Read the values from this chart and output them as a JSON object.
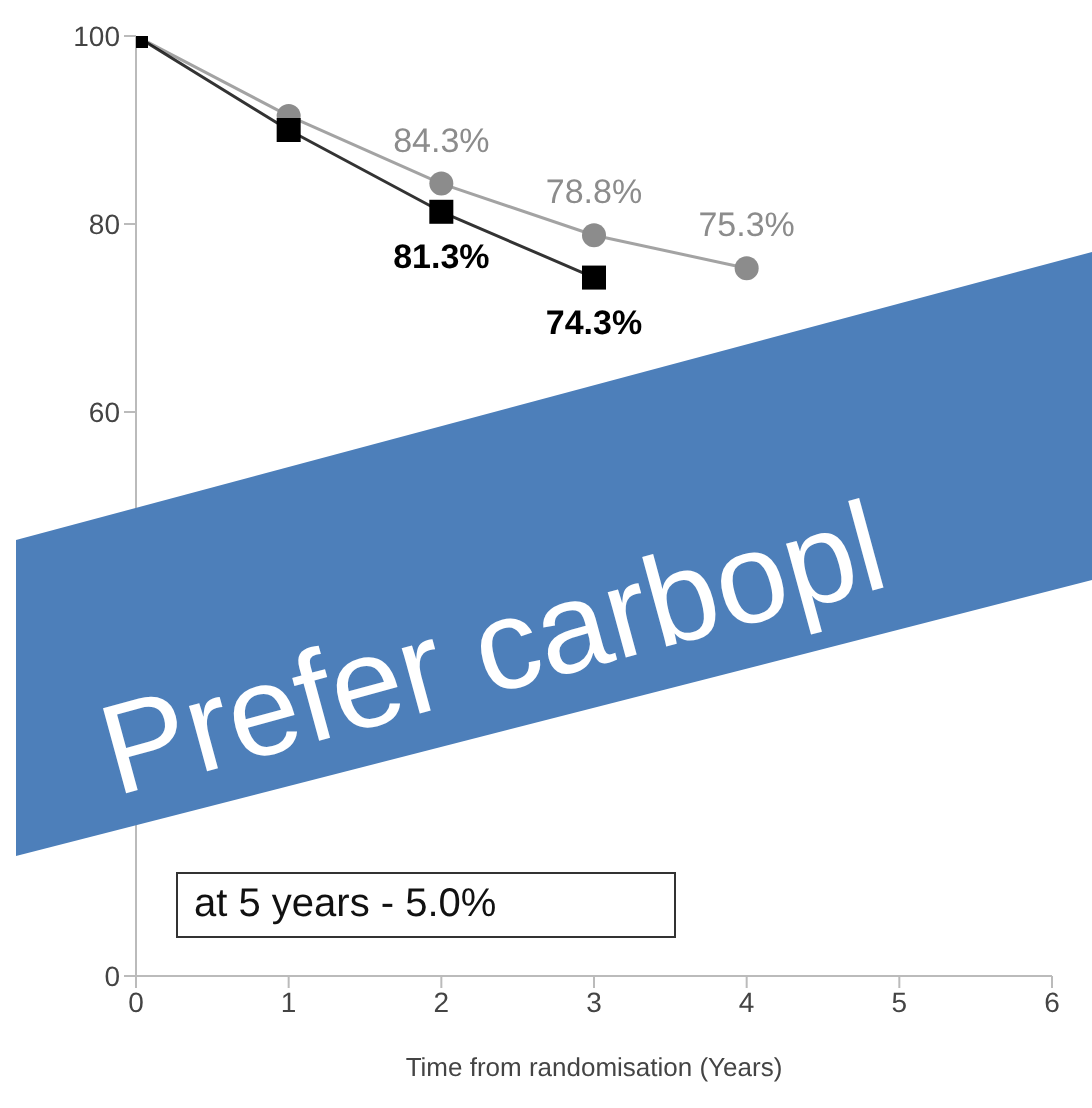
{
  "chart_data": {
    "type": "line",
    "x": [
      0,
      1,
      2,
      3,
      4
    ],
    "series": [
      {
        "color": "#8c8c8c",
        "marker": "circle",
        "values": [
          100,
          91.5,
          84.3,
          78.8,
          75.3
        ],
        "value_labels": [
          null,
          null,
          "84.3%",
          "78.8%",
          "75.3%"
        ]
      },
      {
        "color": "#000000",
        "marker": "square",
        "values": [
          100,
          90,
          81.3,
          74.3,
          null
        ],
        "value_labels": [
          null,
          null,
          "81.3%",
          "74.3%",
          null
        ]
      }
    ],
    "xlabel": "Time from randomisation (Years)",
    "xlim": [
      0,
      6
    ],
    "xticks": [
      0,
      1,
      2,
      3,
      4,
      5,
      6
    ],
    "ylim": [
      0,
      100
    ],
    "yticks": [
      0,
      60,
      80,
      100
    ],
    "grid": false,
    "legend": false,
    "annotations": [
      "Prefer carbopl",
      "at 5 years - 5.0%"
    ]
  }
}
